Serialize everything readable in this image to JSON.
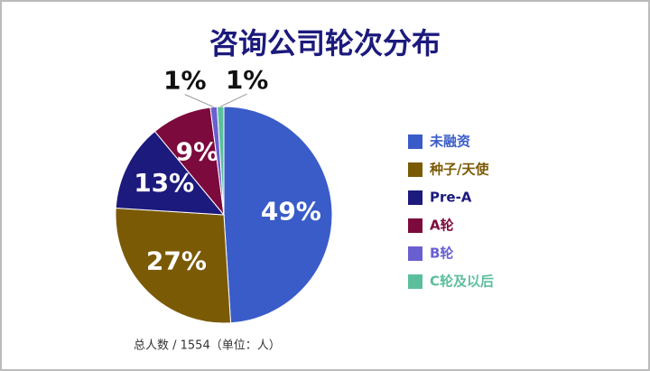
{
  "chart_data": {
    "type": "pie",
    "title": "咨询公司轮次分布",
    "categories": [
      "未融资",
      "种子/天使",
      "Pre-A",
      "A轮",
      "B轮",
      "C轮及以后"
    ],
    "values": [
      49,
      27,
      13,
      9,
      1,
      1
    ],
    "value_labels": [
      "49%",
      "27%",
      "13%",
      "9%",
      "1%",
      "1%"
    ],
    "colors": [
      "#3a5cc8",
      "#7b5a05",
      "#1c1a7c",
      "#7c0a3c",
      "#6a5fd0",
      "#5cbf9c"
    ],
    "note": "总人数 / 1554（单位：人）"
  }
}
